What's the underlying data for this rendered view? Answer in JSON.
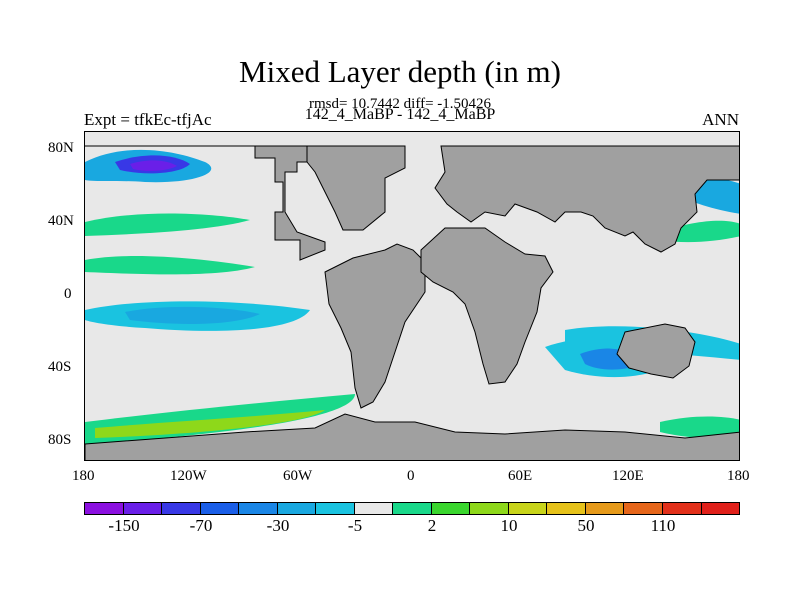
{
  "header": {
    "title": "Mixed Layer depth (in m)",
    "stats": "rmsd= 10.7442 diff= -1.50426",
    "cases": "142_4_MaBP - 142_4_MaBP",
    "expt": "Expt = tfkEc-tfjAc",
    "season": "ANN"
  },
  "map": {
    "lat_labels": [
      "80N",
      "40N",
      "0",
      "40S",
      "80S"
    ],
    "lon_labels": [
      "180",
      "120W",
      "60W",
      "0",
      "60E",
      "120E",
      "180"
    ],
    "land_color": "#a0a0a0",
    "ocean_neutral_color": "#e8e8e8"
  },
  "colorbar": {
    "labels": [
      "-150",
      "-70",
      "-30",
      "-5",
      "2",
      "10",
      "50",
      "110"
    ],
    "colors": [
      "#8b10e0",
      "#6a1fe8",
      "#3838e6",
      "#1a5ee8",
      "#1a86e6",
      "#19a8e0",
      "#1ac3e0",
      "#e8e8e8",
      "#19d88a",
      "#3ad62e",
      "#8ed81a",
      "#c8d41a",
      "#e6c21a",
      "#e69a1a",
      "#e6661a",
      "#e2301a",
      "#e0201a"
    ]
  }
}
